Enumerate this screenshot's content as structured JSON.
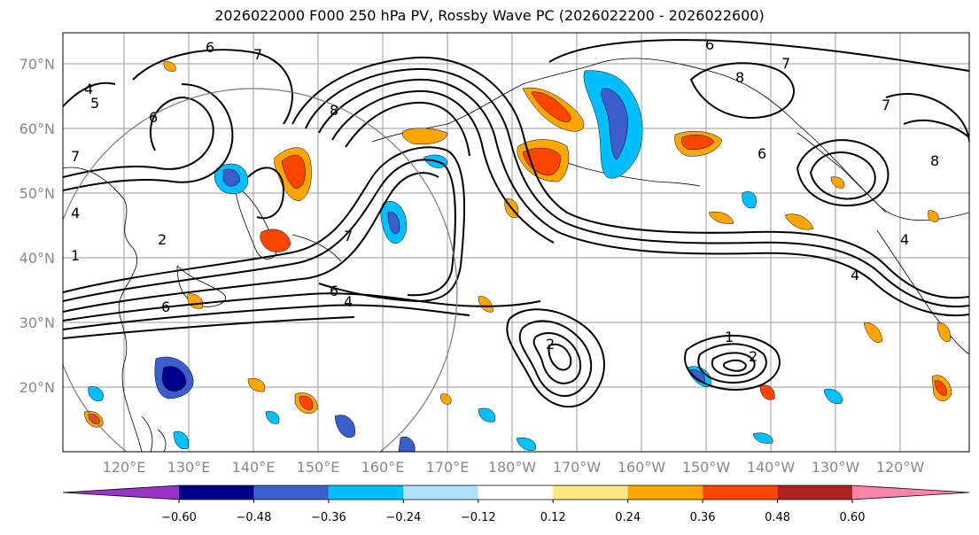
{
  "title": "2026022000 F000 250 hPa PV, Rossby Wave PC (2026022200 - 2026022600)",
  "lat_labels": [
    "70°N",
    "60°N",
    "50°N",
    "40°N",
    "30°N",
    "20°N"
  ],
  "lon_labels": [
    "120°E",
    "130°E",
    "140°E",
    "150°E",
    "160°E",
    "170°E",
    "180°W",
    "170°W",
    "160°W",
    "150°W",
    "140°W",
    "130°W",
    "120°W"
  ],
  "colorbar": {
    "ticks": [
      "−0.60",
      "−0.48",
      "−0.36",
      "−0.24",
      "−0.12",
      "0.12",
      "0.24",
      "0.36",
      "0.48",
      "0.60"
    ],
    "colors": [
      "#9933cc",
      "#00008b",
      "#3a5fcd",
      "#00bfff",
      "#b0e2ff",
      "#ffffff",
      "#ffe680",
      "#ffa500",
      "#ff4500",
      "#b22222",
      "#ff82ab"
    ]
  },
  "contour_labels": [
    "6",
    "5",
    "4",
    "6",
    "7",
    "4",
    "2",
    "1",
    "6",
    "7",
    "6",
    "4",
    "7",
    "6",
    "8",
    "8",
    "7",
    "7",
    "8",
    "6",
    "4",
    "4",
    "2",
    "1",
    "2"
  ],
  "colors": {
    "contour": "#000000",
    "grid": "#999999",
    "frame": "#000000"
  }
}
